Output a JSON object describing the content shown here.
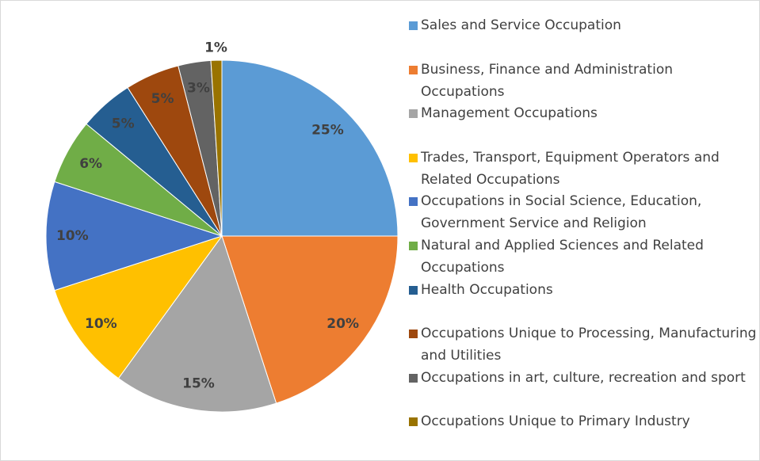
{
  "chart_data": {
    "type": "pie",
    "categories": [
      "Sales and Service Occupation",
      "Business, Finance and Administration Occupations",
      "Management Occupations",
      "Trades, Transport, Equipment Operators and Related Occupations",
      "Occupations in Social Science, Education, Government Service and Religion",
      "Natural and Applied Sciences and Related Occupations",
      "Health Occupations",
      "Occupations Unique to Processing, Manufacturing and Utilities",
      "Occupations in art, culture, recreation and sport",
      "Occupations Unique to Primary Industry"
    ],
    "values": [
      25,
      20,
      15,
      10,
      10,
      6,
      5,
      5,
      3,
      1
    ],
    "value_labels": [
      "25%",
      "20%",
      "15%",
      "10%",
      "10%",
      "6%",
      "5%",
      "5%",
      "3%",
      "1%"
    ],
    "colors": [
      "#5b9bd5",
      "#ed7d31",
      "#a5a5a5",
      "#ffc000",
      "#4472c4",
      "#70ad47",
      "#255e91",
      "#9e480e",
      "#636363",
      "#997300"
    ],
    "legend": "right"
  }
}
